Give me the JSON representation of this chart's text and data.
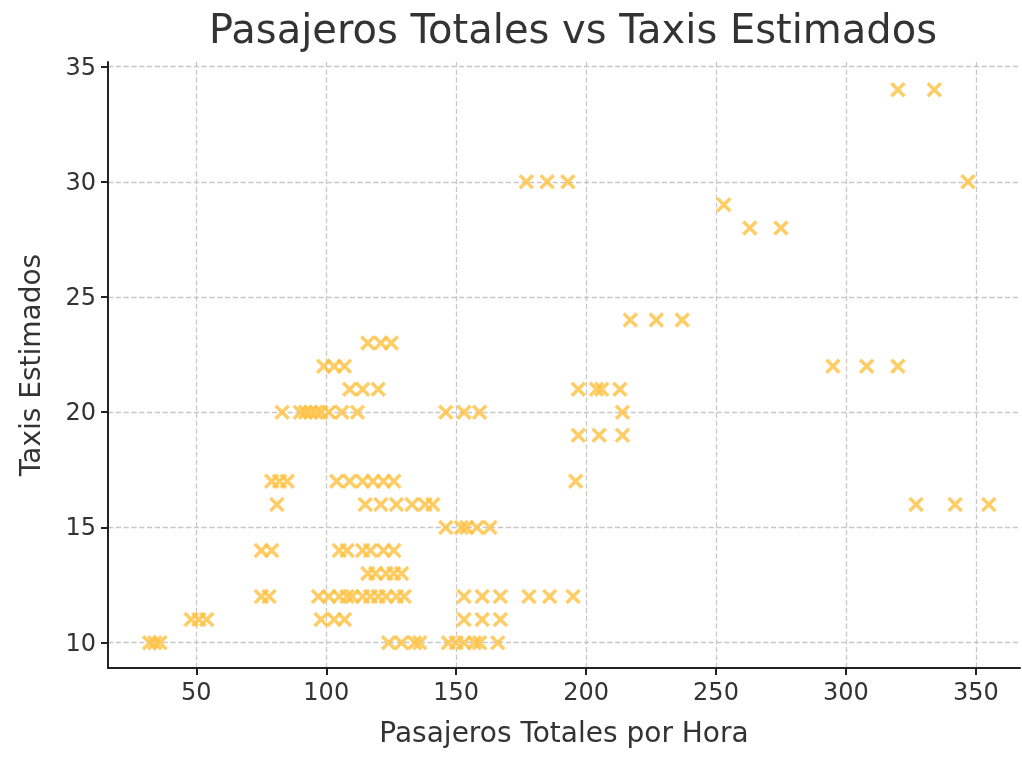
{
  "chart_data": {
    "type": "scatter",
    "title": "Pasajeros Totales vs Taxis Estimados",
    "xlabel": "Pasajeros Totales por Hora",
    "ylabel": "Taxis Estimados",
    "xlim": [
      16,
      367
    ],
    "ylim": [
      8.9,
      35.2
    ],
    "xticks": [
      50,
      100,
      150,
      200,
      250,
      300,
      350
    ],
    "yticks": [
      10,
      15,
      20,
      25,
      30,
      35
    ],
    "grid": true,
    "marker": "cross",
    "series": [
      {
        "color": "#ffc040",
        "x": [
          320,
          334,
          347,
          177,
          185,
          193,
          253,
          263,
          275,
          217,
          227,
          237,
          295,
          308,
          320,
          327,
          342,
          355,
          197,
          204,
          206,
          213,
          214,
          197,
          205,
          214,
          196,
          146,
          153,
          159,
          146,
          152,
          154,
          158,
          163,
          153,
          160,
          167,
          178,
          186,
          195,
          153,
          160,
          167,
          136,
          147,
          150,
          153,
          157,
          159,
          166,
          116,
          121,
          125,
          99,
          103,
          107,
          109,
          114,
          120,
          83,
          90,
          92,
          94,
          96,
          98,
          101,
          106,
          112,
          79,
          82,
          85,
          104,
          109,
          114,
          118,
          122,
          126,
          81,
          115,
          121,
          127,
          133,
          138,
          141,
          75,
          79,
          105,
          108,
          114,
          117,
          122,
          126,
          116,
          119,
          123,
          126,
          129,
          75,
          78,
          97,
          101,
          105,
          108,
          110,
          114,
          117,
          120,
          123,
          127,
          130,
          48,
          51,
          54,
          98,
          103,
          107,
          32,
          34,
          36,
          124,
          129,
          134
        ],
        "values": [
          34,
          34,
          30,
          30,
          30,
          30,
          29,
          28,
          28,
          24,
          24,
          24,
          22,
          22,
          22,
          16,
          16,
          16,
          21,
          21,
          21,
          21,
          20,
          19,
          19,
          19,
          17,
          20,
          20,
          20,
          15,
          15,
          15,
          15,
          15,
          12,
          12,
          12,
          12,
          12,
          12,
          11,
          11,
          11,
          10,
          10,
          10,
          10,
          10,
          10,
          10,
          23,
          23,
          23,
          22,
          22,
          22,
          21,
          21,
          21,
          20,
          20,
          20,
          20,
          20,
          20,
          20,
          20,
          20,
          17,
          17,
          17,
          17,
          17,
          17,
          17,
          17,
          17,
          16,
          16,
          16,
          16,
          16,
          16,
          16,
          14,
          14,
          14,
          14,
          14,
          14,
          14,
          14,
          13,
          13,
          13,
          13,
          13,
          12,
          12,
          12,
          12,
          12,
          12,
          12,
          12,
          12,
          12,
          12,
          12,
          12,
          11,
          11,
          11,
          11,
          11,
          11,
          10,
          10,
          10,
          10,
          10,
          10
        ]
      }
    ]
  }
}
